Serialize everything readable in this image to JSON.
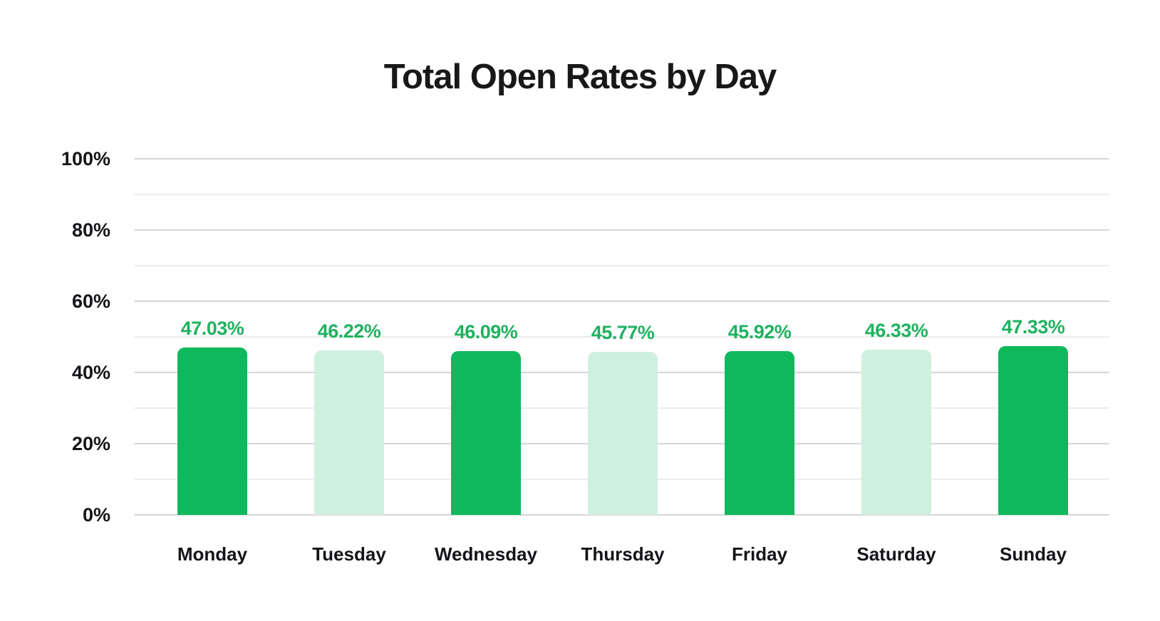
{
  "chart": {
    "title": "Total Open Rates by Day"
  },
  "chart_data": {
    "type": "bar",
    "title": "Total Open Rates by Day",
    "categories": [
      "Monday",
      "Tuesday",
      "Wednesday",
      "Thursday",
      "Friday",
      "Saturday",
      "Sunday"
    ],
    "values": [
      47.03,
      46.22,
      46.09,
      45.77,
      45.92,
      46.33,
      47.33
    ],
    "value_labels": [
      "47.03%",
      "46.22%",
      "46.09%",
      "45.77%",
      "45.92%",
      "46.33%",
      "47.33%"
    ],
    "xlabel": "",
    "ylabel": "",
    "ylim": [
      0,
      100
    ],
    "y_tick_labels": [
      "0%",
      "20%",
      "40%",
      "60%",
      "80%",
      "100%"
    ],
    "y_major_step_pct": 20,
    "grid_minor_step_pct": 10,
    "grid": "horizontal",
    "legend": "none",
    "bar_pattern": [
      "dark",
      "light",
      "dark",
      "light",
      "dark",
      "light",
      "dark"
    ],
    "colors": {
      "bar_dark": "#0fb95b",
      "bar_light": "#cff0df",
      "value_label": "#1fb160",
      "grid_major": "#d6d6d8",
      "grid_minor": "#ececec",
      "text": "#141518",
      "background": "#ffffff"
    }
  }
}
